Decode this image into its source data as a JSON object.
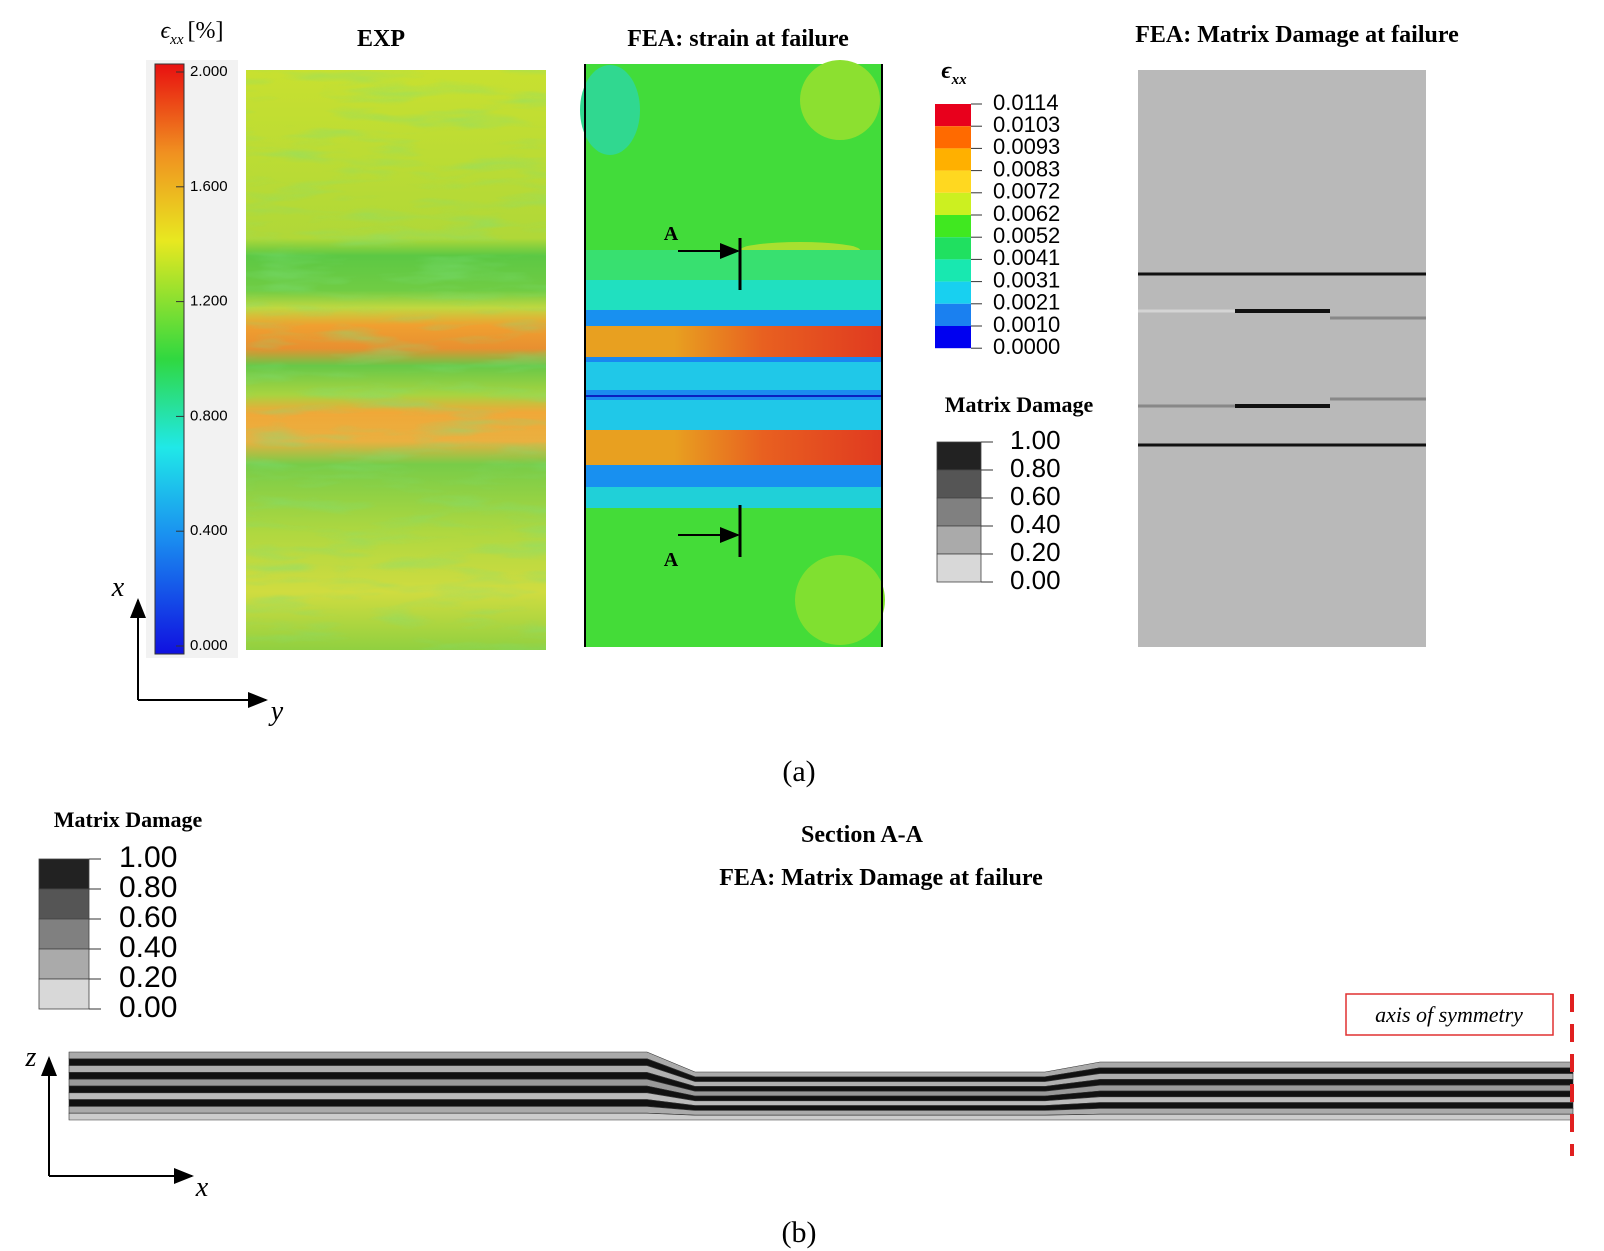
{
  "panel_a": {
    "exp": {
      "title": "EXP",
      "colorbar_symbol": "ϵ",
      "colorbar_subscript": "xx",
      "colorbar_unit": "[%]",
      "colorbar_ticks": [
        "2.000",
        "1.600",
        "1.200",
        "0.800",
        "0.400",
        "0.000"
      ]
    },
    "fea_strain": {
      "title": "FEA: strain at failure",
      "section_markers": [
        "A",
        "A"
      ],
      "legend_symbol": "ϵ",
      "legend_subscript": "xx",
      "legend_ticks": [
        "0.0114",
        "0.0103",
        "0.0093",
        "0.0083",
        "0.0072",
        "0.0062",
        "0.0052",
        "0.0041",
        "0.0031",
        "0.0021",
        "0.0010",
        "0.0000"
      ]
    },
    "fea_damage": {
      "title": "FEA: Matrix Damage at failure",
      "legend_title": "Matrix Damage",
      "legend_ticks": [
        "1.00",
        "0.80",
        "0.60",
        "0.40",
        "0.20",
        "0.00"
      ]
    },
    "axes": {
      "vertical": "x",
      "horizontal": "y"
    },
    "caption": "(a)"
  },
  "panel_b": {
    "legend_title": "Matrix Damage",
    "legend_ticks": [
      "1.00",
      "0.80",
      "0.60",
      "0.40",
      "0.20",
      "0.00"
    ],
    "title_line1": "Section A-A",
    "title_line2": "FEA: Matrix Damage at failure",
    "symmetry_label": "axis of symmetry",
    "axes": {
      "vertical": "z",
      "horizontal": "x"
    },
    "caption": "(b)"
  }
}
